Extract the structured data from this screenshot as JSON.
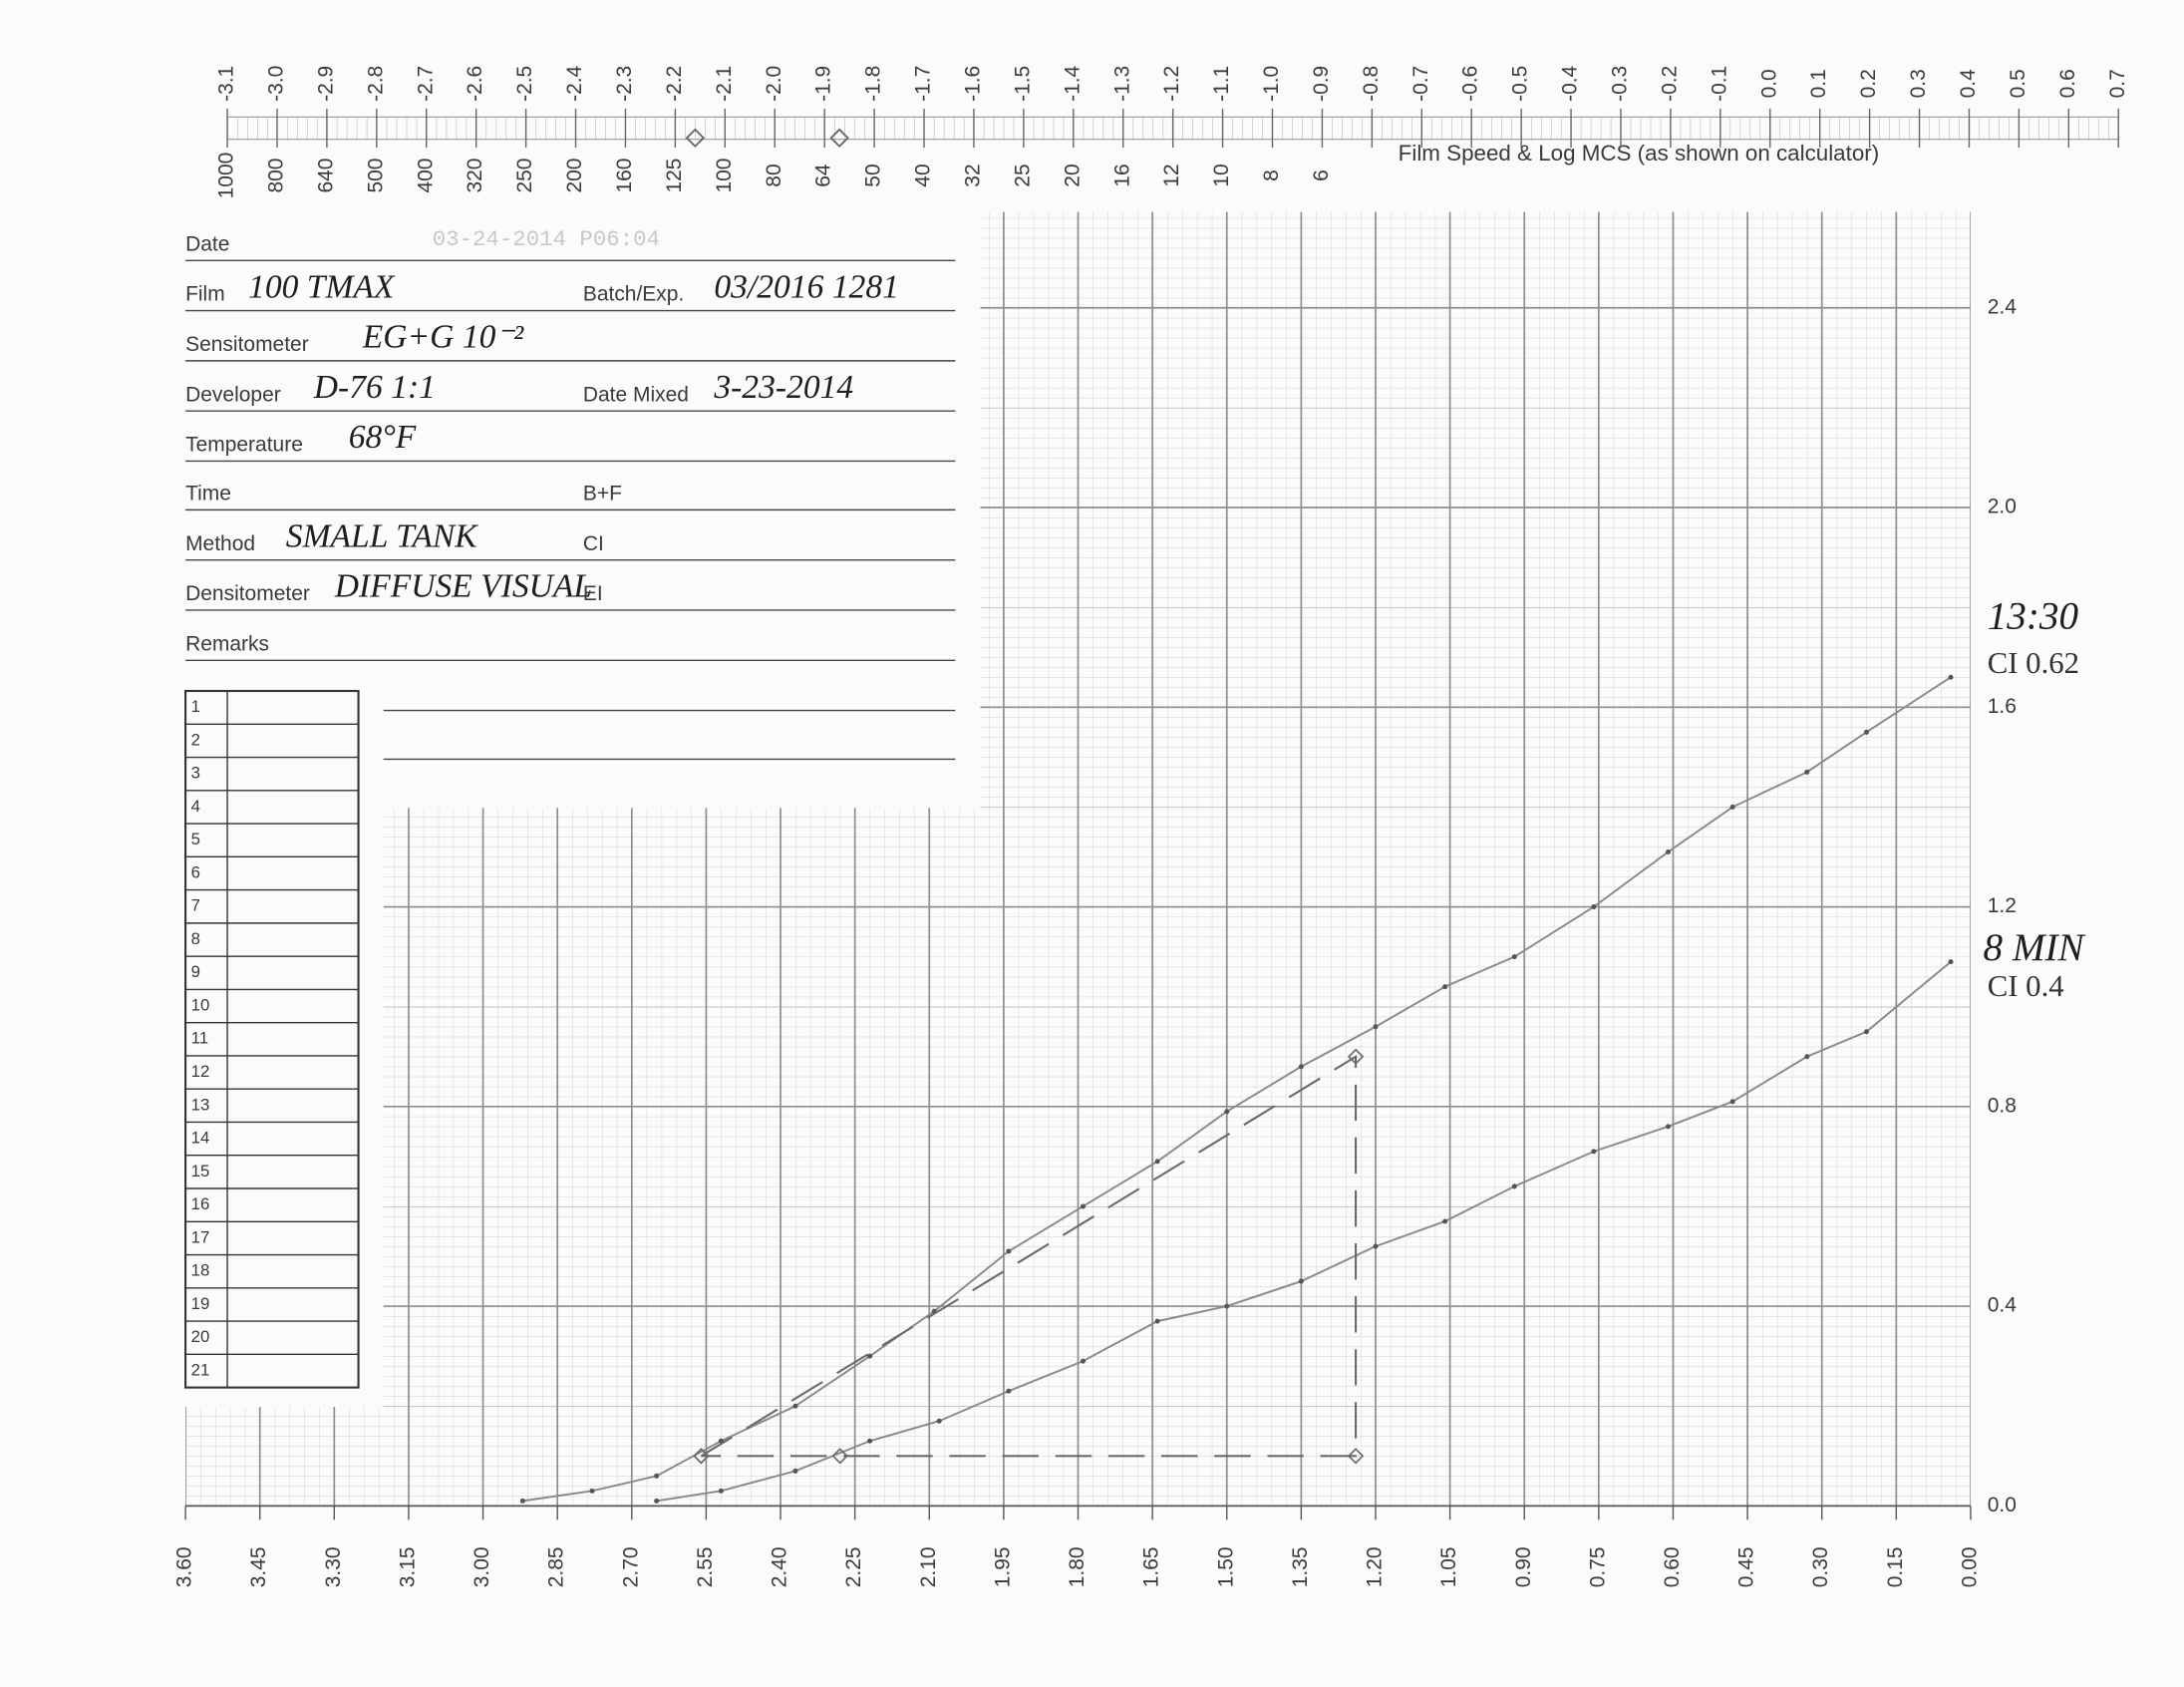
{
  "form": {
    "rows": [
      {
        "label": "Date",
        "value": "03-24-2014 P06:04"
      },
      {
        "label": "Film",
        "value": "100 TMAX",
        "label2": "Batch/Exp.",
        "value2": "03/2016 1281"
      },
      {
        "label": "Sensitometer",
        "value": "EG+G 10⁻²"
      },
      {
        "label": "Developer",
        "value": "D-76 1:1",
        "label2": "Date Mixed",
        "value2": "3-23-2014"
      },
      {
        "label": "Temperature",
        "value": "68°F"
      },
      {
        "label": "Time",
        "label2": "B+F"
      },
      {
        "label": "Method",
        "value": "SMALL TANK",
        "label2": "CI"
      },
      {
        "label": "Densitometer",
        "value": "DIFFUSE VISUAL",
        "label2": "EI"
      },
      {
        "label": "Remarks"
      }
    ],
    "table_rows": [
      1,
      2,
      3,
      4,
      5,
      6,
      7,
      8,
      9,
      10,
      11,
      12,
      13,
      14,
      15,
      16,
      17,
      18,
      19,
      20,
      21
    ]
  },
  "chart_data": {
    "type": "line",
    "x2_label": "Film Speed & Log MCS (as shown on calculator)",
    "x2lim": [
      -3.1,
      0.7
    ],
    "x2ticks": [
      -3.1,
      {
        "value": -3.0,
        "label": "-3.0"
      },
      -2.9,
      -2.8,
      -2.7,
      -2.6,
      -2.5,
      -2.4,
      -2.3,
      -2.2,
      -2.1,
      {
        "value": -2.0,
        "label": "-2.0"
      },
      -1.9,
      -1.8,
      -1.7,
      -1.6,
      -1.5,
      -1.4,
      -1.3,
      -1.2,
      -1.1,
      {
        "value": -1.0,
        "label": "-1.0"
      },
      -0.9,
      -0.8,
      -0.7,
      -0.6,
      -0.5,
      -0.4,
      -0.3,
      -0.2,
      -0.1,
      {
        "value": 0.0,
        "label": "0.0"
      },
      0.1,
      0.2,
      0.3,
      0.4,
      0.5,
      0.6,
      0.7
    ],
    "speed_ticks": [
      {
        "value": -3.1,
        "label": "1000"
      },
      {
        "value": -3.0,
        "label": "800"
      },
      {
        "value": -2.9,
        "label": "640"
      },
      {
        "value": -2.8,
        "label": "500"
      },
      {
        "value": -2.7,
        "label": "400"
      },
      {
        "value": -2.6,
        "label": "320"
      },
      {
        "value": -2.5,
        "label": "250"
      },
      {
        "value": -2.4,
        "label": "200"
      },
      {
        "value": -2.3,
        "label": "160"
      },
      {
        "value": -2.2,
        "label": "125"
      },
      {
        "value": -2.1,
        "label": "100"
      },
      {
        "value": -2.0,
        "label": "80"
      },
      {
        "value": -1.9,
        "label": "64"
      },
      {
        "value": -1.8,
        "label": "50"
      },
      {
        "value": -1.7,
        "label": "40"
      },
      {
        "value": -1.6,
        "label": "32"
      },
      {
        "value": -1.5,
        "label": "25"
      },
      {
        "value": -1.4,
        "label": "20"
      },
      {
        "value": -1.3,
        "label": "16"
      },
      {
        "value": -1.2,
        "label": "12"
      },
      {
        "value": -1.1,
        "label": "10"
      },
      {
        "value": -1.0,
        "label": "8"
      },
      {
        "value": -0.9,
        "label": "6"
      }
    ],
    "x2_markers": [
      -2.16,
      -1.87
    ],
    "xlim": [
      3.6,
      0
    ],
    "xticks": [
      {
        "value": 3.6,
        "label": "3.60"
      },
      3.45,
      {
        "value": 3.3,
        "label": "3.30"
      },
      3.15,
      {
        "value": 3.0,
        "label": "3.00"
      },
      2.85,
      {
        "value": 2.7,
        "label": "2.70"
      },
      2.55,
      {
        "value": 2.4,
        "label": "2.40"
      },
      2.25,
      {
        "value": 2.1,
        "label": "2.10"
      },
      1.95,
      {
        "value": 1.8,
        "label": "1.80"
      },
      1.65,
      {
        "value": 1.5,
        "label": "1.50"
      },
      1.35,
      {
        "value": 1.2,
        "label": "1.20"
      },
      1.05,
      {
        "value": 0.9,
        "label": "0.90"
      },
      0.75,
      {
        "value": 0.6,
        "label": "0.60"
      },
      0.45,
      {
        "value": 0.3,
        "label": "0.30"
      },
      0.15,
      {
        "value": 0.0,
        "label": "0.00"
      }
    ],
    "ylim": [
      0,
      2.6
    ],
    "yticks": [
      {
        "value": 0.0,
        "label": "0.0"
      },
      0.4,
      0.8,
      1.2,
      1.6,
      {
        "value": 2.0,
        "label": "2.0"
      },
      2.4
    ],
    "grid": true,
    "series": [
      {
        "name": "13:30",
        "color": "#8a8a8a",
        "marker": "dot",
        "x": [
          2.92,
          2.78,
          2.65,
          2.52,
          2.37,
          2.22,
          2.09,
          1.94,
          1.79,
          1.64,
          1.5,
          1.35,
          1.2,
          1.06,
          0.92,
          0.76,
          0.61,
          0.48,
          0.33,
          0.21,
          0.04
        ],
        "values": [
          0.01,
          0.03,
          0.06,
          0.13,
          0.2,
          0.3,
          0.39,
          0.51,
          0.6,
          0.69,
          0.79,
          0.88,
          0.96,
          1.04,
          1.1,
          1.2,
          1.31,
          1.4,
          1.47,
          1.55,
          1.66
        ]
      },
      {
        "name": "8 MIN",
        "color": "#8a8a8a",
        "marker": "dot",
        "x": [
          2.65,
          2.52,
          2.37,
          2.22,
          2.08,
          1.94,
          1.79,
          1.64,
          1.5,
          1.35,
          1.2,
          1.06,
          0.92,
          0.76,
          0.61,
          0.48,
          0.33,
          0.21,
          0.04
        ],
        "values": [
          0.01,
          0.03,
          0.07,
          0.13,
          0.17,
          0.23,
          0.29,
          0.37,
          0.4,
          0.45,
          0.52,
          0.57,
          0.64,
          0.71,
          0.76,
          0.81,
          0.9,
          0.95,
          1.09
        ]
      },
      {
        "color": "#6a6a6a",
        "marker": "diamond",
        "dashed": true,
        "x": [
          2.56,
          1.24,
          1.24,
          2.28,
          2.56
        ],
        "values": [
          0.1,
          0.9,
          0.1,
          0.1,
          0.1
        ]
      }
    ],
    "annotations": [
      "CI 0.62",
      "CI 0.4"
    ]
  }
}
